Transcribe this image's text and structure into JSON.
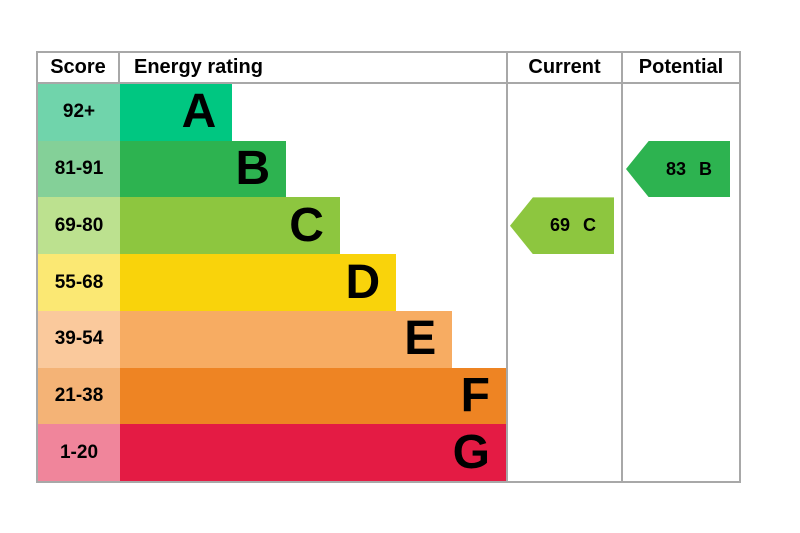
{
  "chart_data": {
    "type": "bar",
    "variant": "epc-energy-rating",
    "orientation": "horizontal",
    "grid": false,
    "columns": [
      "Score",
      "Energy rating",
      "Current",
      "Potential"
    ],
    "border_color": "#a8a8a8",
    "bands": [
      {
        "score_range": "92+",
        "letter": "A",
        "bar_color": "#00c781",
        "score_bg": "#70d4ab",
        "bar_width_pct": 24
      },
      {
        "score_range": "81-91",
        "letter": "B",
        "bar_color": "#2db350",
        "score_bg": "#84d098",
        "bar_width_pct": 35.5
      },
      {
        "score_range": "69-80",
        "letter": "C",
        "bar_color": "#8dc63f",
        "score_bg": "#bce18f",
        "bar_width_pct": 47
      },
      {
        "score_range": "55-68",
        "letter": "D",
        "bar_color": "#f9d30b",
        "score_bg": "#fbe873",
        "bar_width_pct": 59
      },
      {
        "score_range": "39-54",
        "letter": "E",
        "bar_color": "#f7ac62",
        "score_bg": "#fac99c",
        "bar_width_pct": 71
      },
      {
        "score_range": "21-38",
        "letter": "F",
        "bar_color": "#ee8423",
        "score_bg": "#f4b376",
        "bar_width_pct": 83.5
      },
      {
        "score_range": "1-20",
        "letter": "G",
        "bar_color": "#e41b44",
        "score_bg": "#f0859b",
        "bar_width_pct": 94.5
      }
    ],
    "markers": {
      "current": {
        "column": "Current",
        "value": 69,
        "letter": "C",
        "band_row_index": 2,
        "color": "#8dc63f"
      },
      "potential": {
        "column": "Potential",
        "value": 83,
        "letter": "B",
        "band_row_index": 1,
        "color": "#2db350"
      }
    }
  }
}
